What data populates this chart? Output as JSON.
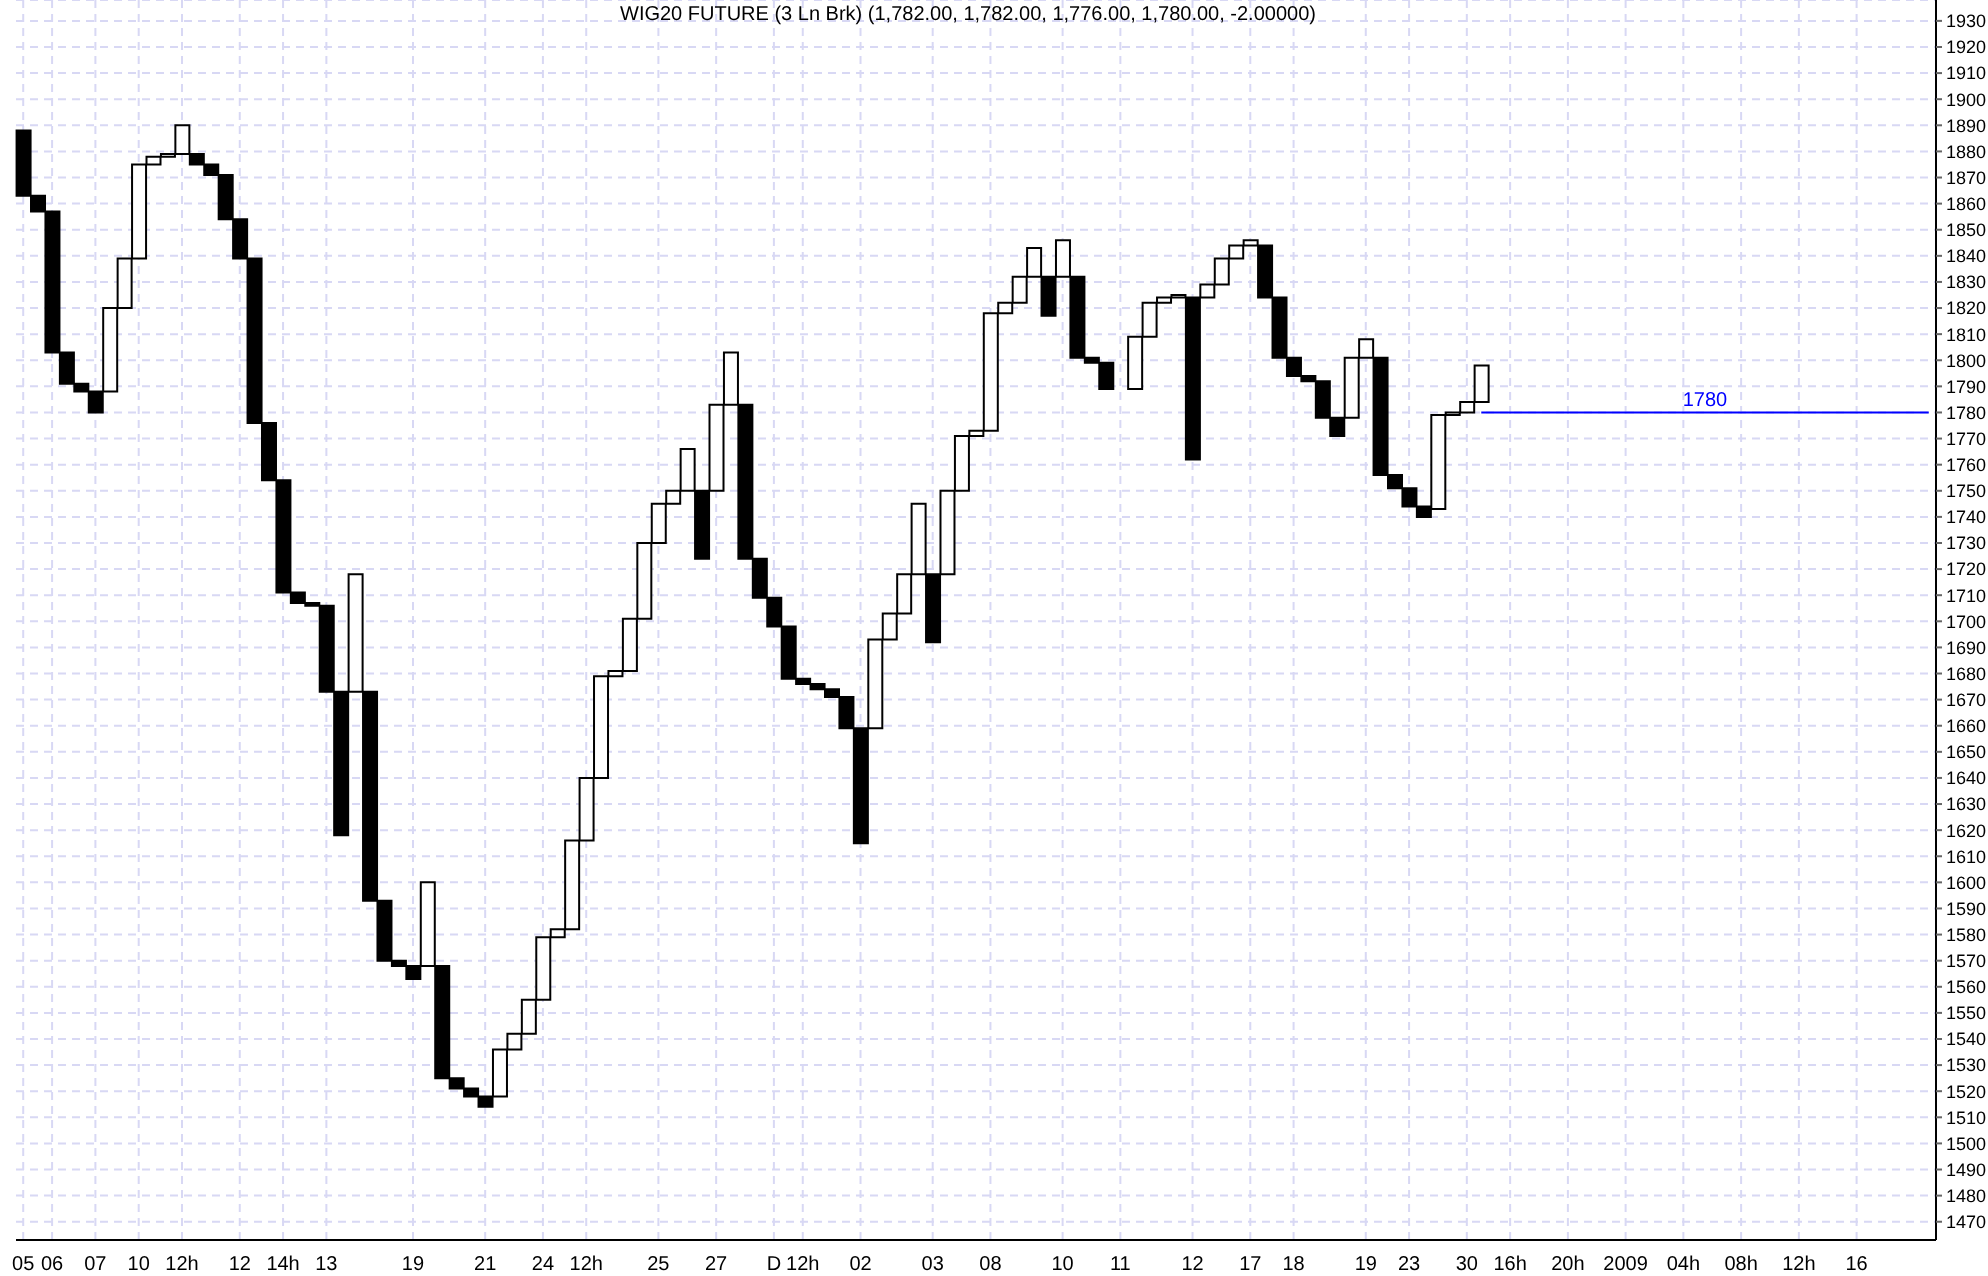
{
  "chart_data": {
    "type": "bar",
    "title": "WIG20 FUTURE (3 Ln Brk)  (1,782.00, 1,782.00, 1,776.00, 1,780.00, -2.00000)",
    "categories": [
      "05",
      null,
      "06",
      null,
      null,
      "07",
      null,
      null,
      "10",
      null,
      null,
      "12h",
      null,
      null,
      null,
      "12",
      null,
      null,
      "14h",
      null,
      null,
      "13",
      null,
      null,
      null,
      null,
      null,
      "19",
      null,
      null,
      null,
      null,
      "21",
      null,
      null,
      null,
      "24",
      null,
      null,
      "12h",
      null,
      null,
      null,
      null,
      "25",
      null,
      null,
      null,
      "27",
      null,
      null,
      null,
      "D",
      null,
      "12h",
      null,
      null,
      null,
      "02",
      null,
      null,
      null,
      null,
      "03",
      null,
      null,
      null,
      "08",
      null,
      null,
      null,
      null,
      "10",
      null,
      null,
      null,
      "11",
      null,
      null,
      null,
      null,
      "12",
      null,
      null,
      null,
      "17",
      null,
      null,
      "18",
      null,
      null,
      null,
      null,
      "19",
      null,
      null,
      "23",
      null,
      null,
      null,
      "30",
      null,
      null,
      "16h",
      null,
      null,
      null,
      "20h",
      null,
      null,
      null,
      "2009",
      null,
      null,
      null,
      "04h",
      null,
      null,
      null,
      "08h",
      null,
      null,
      null,
      "12h",
      null,
      null,
      null,
      "16",
      null,
      null,
      null,
      null,
      null
    ],
    "base": [
      1888,
      1863,
      1857,
      1803,
      1791,
      1788,
      1788,
      1820,
      1839,
      1875,
      1878,
      1879,
      1879,
      1875,
      1871,
      1854,
      1839,
      1776,
      1754,
      1711,
      1707,
      1706,
      1673,
      1673,
      1673,
      1593,
      1570,
      1568,
      1568,
      1568,
      1525,
      1521,
      1518,
      1518,
      1536,
      1542,
      1555,
      1579,
      1582,
      1616,
      1640,
      1679,
      1681,
      1701,
      1730,
      1745,
      1750,
      1750,
      1750,
      1783,
      1783,
      1724,
      1709,
      1698,
      1678,
      1676,
      1674,
      1671,
      1659,
      1659,
      1693,
      1703,
      1718,
      1718,
      1718,
      1750,
      1771,
      1773,
      1818,
      1822,
      1832,
      1832,
      1832,
      1832,
      1801,
      1799,
      null,
      1789,
      1809,
      1822,
      1824,
      1824,
      1824,
      1829,
      1839,
      1844,
      1844,
      1824,
      1801,
      1794,
      1792,
      1778,
      1778,
      1801,
      1801,
      1756,
      1751,
      1744,
      1743,
      1779,
      1780,
      1784,
      null,
      null,
      null,
      null,
      null,
      null,
      null,
      null,
      null,
      null,
      null,
      null,
      null,
      null,
      null,
      null,
      null,
      null,
      null,
      null,
      null,
      null,
      null,
      null,
      null,
      null,
      null,
      null,
      null,
      null,
      null
    ],
    "values": [
      -25,
      -6,
      -54,
      -12,
      -3,
      -8,
      32,
      19,
      36,
      3,
      1,
      11,
      -4,
      -4,
      -17,
      -15,
      -63,
      -22,
      -43,
      -4,
      -1,
      -33,
      -55,
      45,
      -80,
      -23,
      -2,
      -5,
      32,
      -43,
      -4,
      -3,
      -4,
      18,
      6,
      13,
      24,
      3,
      34,
      24,
      39,
      2,
      20,
      29,
      15,
      5,
      16,
      -26,
      33,
      20,
      -59,
      -15,
      -11,
      -20,
      -2,
      -2,
      -3,
      -12,
      -44,
      34,
      10,
      15,
      27,
      -26,
      32,
      21,
      2,
      45,
      4,
      10,
      11,
      -15,
      14,
      -31,
      -2,
      -10,
      null,
      20,
      13,
      2,
      1,
      -62,
      5,
      10,
      5,
      2,
      -20,
      -23,
      -7,
      -2,
      -14,
      -7,
      23,
      7,
      -45,
      -5,
      -7,
      -4,
      36,
      1,
      4,
      14,
      null,
      null,
      null,
      null,
      null,
      null,
      null,
      null,
      null,
      null,
      null,
      null,
      null,
      null,
      null,
      null,
      null,
      null,
      null,
      null,
      null,
      null,
      null,
      null,
      null,
      null,
      null,
      null,
      null,
      null,
      null
    ],
    "colors": [
      "#000000",
      "#000000",
      "#000000",
      "#000000",
      "#000000",
      "#000000",
      "#ffffff",
      "#ffffff",
      "#ffffff",
      "#ffffff",
      "#ffffff",
      "#ffffff",
      "#000000",
      "#000000",
      "#000000",
      "#000000",
      "#000000",
      "#000000",
      "#000000",
      "#000000",
      "#000000",
      "#000000",
      "#000000",
      "#ffffff",
      "#000000",
      "#000000",
      "#000000",
      "#000000",
      "#ffffff",
      "#000000",
      "#000000",
      "#000000",
      "#000000",
      "#ffffff",
      "#ffffff",
      "#ffffff",
      "#ffffff",
      "#ffffff",
      "#ffffff",
      "#ffffff",
      "#ffffff",
      "#ffffff",
      "#ffffff",
      "#ffffff",
      "#ffffff",
      "#ffffff",
      "#ffffff",
      "#000000",
      "#ffffff",
      "#ffffff",
      "#000000",
      "#000000",
      "#000000",
      "#000000",
      "#000000",
      "#000000",
      "#000000",
      "#000000",
      "#000000",
      "#ffffff",
      "#ffffff",
      "#ffffff",
      "#ffffff",
      "#000000",
      "#ffffff",
      "#ffffff",
      "#ffffff",
      "#ffffff",
      "#ffffff",
      "#ffffff",
      "#ffffff",
      "#000000",
      "#ffffff",
      "#000000",
      "#000000",
      "#000000",
      null,
      "#ffffff",
      "#ffffff",
      "#ffffff",
      "#ffffff",
      "#000000",
      "#ffffff",
      "#ffffff",
      "#ffffff",
      "#ffffff",
      "#000000",
      "#000000",
      "#000000",
      "#000000",
      "#000000",
      "#000000",
      "#ffffff",
      "#ffffff",
      "#000000",
      "#000000",
      "#000000",
      "#000000",
      "#ffffff",
      "#ffffff",
      "#ffffff",
      "#ffffff",
      null,
      null,
      null,
      null,
      null,
      null,
      null,
      null,
      null,
      null,
      null,
      null,
      null,
      null,
      null,
      null,
      null,
      null,
      null,
      null,
      null,
      null,
      null,
      null,
      null,
      null,
      null,
      null,
      null,
      null,
      null
    ],
    "ylim": [
      1463,
      1938
    ],
    "yticks": [
      1470,
      1480,
      1490,
      1500,
      1510,
      1520,
      1530,
      1540,
      1550,
      1560,
      1570,
      1580,
      1590,
      1600,
      1610,
      1620,
      1630,
      1640,
      1650,
      1660,
      1670,
      1680,
      1690,
      1700,
      1710,
      1720,
      1730,
      1740,
      1750,
      1760,
      1770,
      1780,
      1790,
      1800,
      1810,
      1820,
      1830,
      1840,
      1850,
      1860,
      1870,
      1880,
      1890,
      1900,
      1910,
      1920,
      1930
    ],
    "grid": true,
    "ref_lines": [
      {
        "axis": "y",
        "value": 1780,
        "label": "1780",
        "color": "#0000ff"
      }
    ]
  }
}
